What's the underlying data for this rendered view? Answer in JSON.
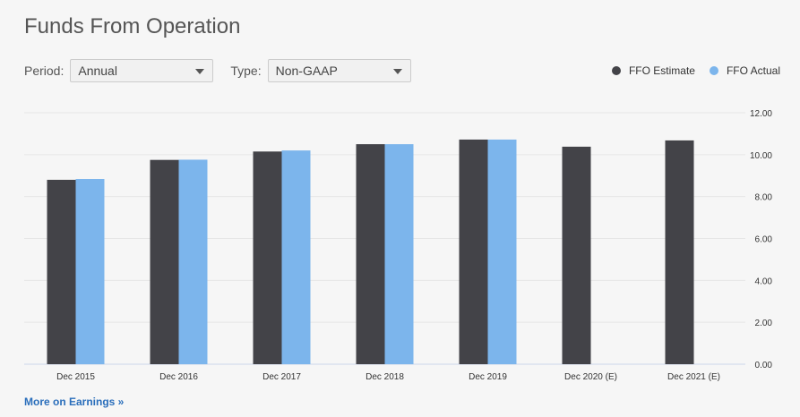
{
  "title": "Funds From Operation",
  "controls": {
    "period_label": "Period:",
    "period_value": "Annual",
    "type_label": "Type:",
    "type_value": "Non-GAAP"
  },
  "legend": [
    {
      "label": "FFO Estimate",
      "color": "#434348"
    },
    {
      "label": "FFO Actual",
      "color": "#7cb5ec"
    }
  ],
  "more_link": "More on Earnings »",
  "chart_data": {
    "type": "bar",
    "categories": [
      "Dec 2015",
      "Dec 2016",
      "Dec 2017",
      "Dec 2018",
      "Dec 2019",
      "Dec 2020 (E)",
      "Dec 2021 (E)"
    ],
    "series": [
      {
        "name": "FFO Estimate",
        "color": "#434348",
        "values": [
          8.8,
          9.75,
          10.15,
          10.5,
          10.72,
          10.38,
          10.68
        ]
      },
      {
        "name": "FFO Actual",
        "color": "#7cb5ec",
        "values": [
          8.84,
          9.76,
          10.2,
          10.5,
          10.72,
          null,
          null
        ]
      }
    ],
    "ylim": [
      0,
      12
    ],
    "yticks": [
      "0.00",
      "2.00",
      "4.00",
      "6.00",
      "8.00",
      "10.00",
      "12.00"
    ],
    "grid": true,
    "legend_position": "top-right"
  }
}
